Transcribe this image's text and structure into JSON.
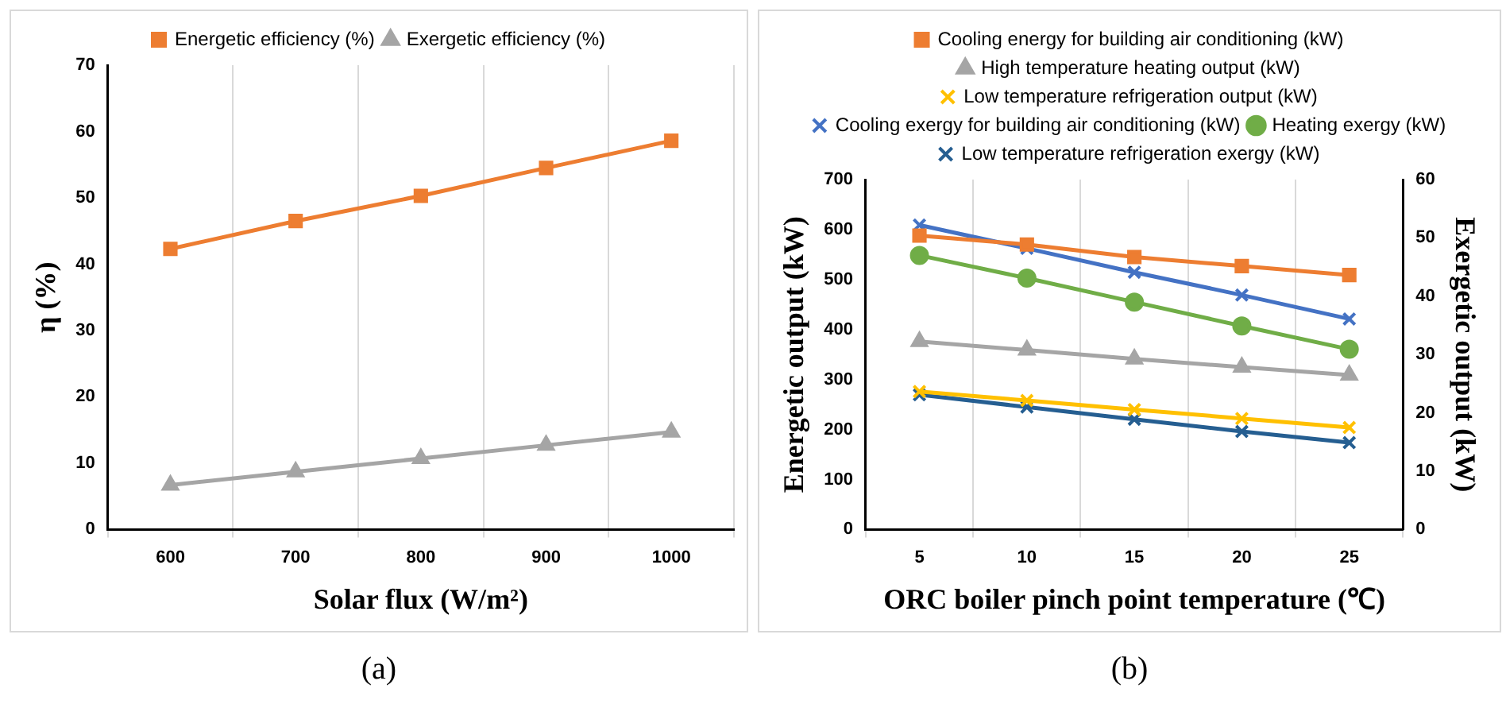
{
  "chart_data": [
    {
      "type": "line",
      "xlabel": "Solar flux (W/m²)",
      "ylabel": "η (%)",
      "categories": [
        "600",
        "700",
        "800",
        "900",
        "1000"
      ],
      "series": [
        {
          "name": "Energetic efficiency (%)",
          "color": "#ed7d31",
          "marker": "square",
          "values": [
            42.3,
            46.5,
            50.3,
            54.5,
            58.6
          ]
        },
        {
          "name": "Exergetic efficiency (%)",
          "color": "#a5a5a5",
          "marker": "triangle",
          "values": [
            6.7,
            8.7,
            10.7,
            12.7,
            14.7
          ]
        }
      ],
      "ylim": [
        0,
        70
      ],
      "yticks": [
        0,
        10,
        20,
        30,
        40,
        50,
        60,
        70
      ],
      "grid": "x",
      "legend": "top",
      "annotations": [
        "(a)"
      ]
    },
    {
      "type": "line",
      "xlabel": "ORC boiler pinch point temperature (℃)",
      "ylabel": "Energetic output (kW)",
      "y2label": "Exergetic output (kW)",
      "categories": [
        "5",
        "10",
        "15",
        "20",
        "25"
      ],
      "series": [
        {
          "name": "Cooling energy for building air conditioning (kW)",
          "color": "#ed7d31",
          "marker": "square",
          "values": [
            588,
            570,
            545,
            527,
            509
          ]
        },
        {
          "name": "High temperature heating output (kW)",
          "color": "#a5a5a5",
          "marker": "triangle",
          "values": [
            376,
            359,
            341,
            325,
            309
          ]
        },
        {
          "name": "Low temperature refrigeration output (kW)",
          "color": "#ffc000",
          "marker": "cross",
          "values": [
            276,
            258,
            240,
            222,
            204
          ]
        },
        {
          "name": "Cooling exergy for building air conditioning (kW)",
          "color": "#4472c4",
          "marker": "cross",
          "axis": "y2",
          "values": [
            52.2,
            48.2,
            44.1,
            40.2,
            36.1
          ]
        },
        {
          "name": "Heating exergy (kW)",
          "color": "#70ad47",
          "marker": "circle",
          "axis": "y2",
          "values": [
            47.0,
            43.1,
            39.0,
            34.9,
            30.9
          ]
        },
        {
          "name": "Low temperature refrigeration exergy (kW)",
          "color": "#255e91",
          "marker": "cross",
          "axis": "y2",
          "values": [
            23.1,
            21.0,
            18.9,
            16.8,
            14.9
          ]
        }
      ],
      "ylim": [
        0,
        700
      ],
      "yticks": [
        0,
        100,
        200,
        300,
        400,
        500,
        600,
        700
      ],
      "y2lim": [
        0,
        60
      ],
      "y2ticks": [
        0,
        10,
        20,
        30,
        40,
        50,
        60
      ],
      "grid": "x",
      "legend": "top",
      "annotations": [
        "(b)"
      ]
    }
  ]
}
